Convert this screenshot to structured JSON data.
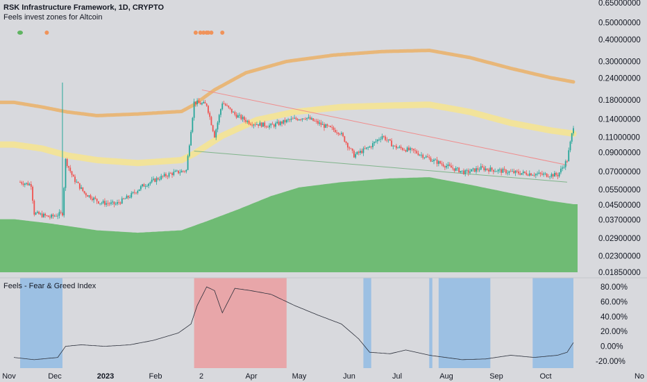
{
  "header": {
    "title": "RSK Infrastructure Framework, 1D, CRYPTO",
    "subtitle": "Feels invest zones for Altcoin"
  },
  "indicator": {
    "title": "Feels - Fear & Greed Index"
  },
  "colors": {
    "background": "#d8d9dd",
    "upper_band": "#e8b779",
    "mid_band": "#f2e39a",
    "lower_area": "#6fbb74",
    "candle_up": "#26a69a",
    "candle_down": "#ef5350",
    "greed_zone": "#e8a6a9",
    "fear_zone": "#9cc0e3",
    "dot_green": "#5fb461",
    "dot_orange": "#f0935a",
    "resistance_line": "#f08b8b",
    "support_line": "#7fb48a"
  },
  "chart_data": [
    {
      "type": "candlestick",
      "title": "RSK Infrastructure Framework, 1D, CRYPTO",
      "y_scale": "log",
      "y_ticks": [
        "0.65000000",
        "0.50000000",
        "0.40000000",
        "0.30000000",
        "0.24000000",
        "0.18000000",
        "0.14000000",
        "0.11000000",
        "0.09000000",
        "0.07000000",
        "0.05500000",
        "0.04500000",
        "0.03700000",
        "0.02900000",
        "0.02300000",
        "0.01850000"
      ],
      "x_ticks": [
        "Nov",
        "Dec",
        "2023",
        "Feb",
        "2",
        "Apr",
        "May",
        "Jun",
        "Jul",
        "Aug",
        "Sep",
        "Oct",
        "No"
      ],
      "price_path": [
        [
          "2022-11-01",
          0.06
        ],
        [
          "2022-11-08",
          0.058
        ],
        [
          "2022-11-10",
          0.04
        ],
        [
          "2022-11-20",
          0.038
        ],
        [
          "2022-11-28",
          0.04
        ],
        [
          "2022-11-30",
          0.08
        ],
        [
          "2022-12-05",
          0.063
        ],
        [
          "2022-12-12",
          0.052
        ],
        [
          "2022-12-22",
          0.046
        ],
        [
          "2023-01-01",
          0.045
        ],
        [
          "2023-01-10",
          0.05
        ],
        [
          "2023-01-18",
          0.057
        ],
        [
          "2023-01-28",
          0.063
        ],
        [
          "2023-02-05",
          0.067
        ],
        [
          "2023-02-15",
          0.07
        ],
        [
          "2023-02-20",
          0.17
        ],
        [
          "2023-02-28",
          0.165
        ],
        [
          "2023-03-05",
          0.11
        ],
        [
          "2023-03-10",
          0.17
        ],
        [
          "2023-03-18",
          0.145
        ],
        [
          "2023-03-28",
          0.13
        ],
        [
          "2023-04-10",
          0.125
        ],
        [
          "2023-04-22",
          0.135
        ],
        [
          "2023-05-02",
          0.14
        ],
        [
          "2023-05-14",
          0.125
        ],
        [
          "2023-05-24",
          0.115
        ],
        [
          "2023-06-02",
          0.085
        ],
        [
          "2023-06-12",
          0.095
        ],
        [
          "2023-06-20",
          0.11
        ],
        [
          "2023-06-28",
          0.095
        ],
        [
          "2023-07-10",
          0.09
        ],
        [
          "2023-07-22",
          0.08
        ],
        [
          "2023-08-02",
          0.073
        ],
        [
          "2023-08-12",
          0.068
        ],
        [
          "2023-08-22",
          0.072
        ],
        [
          "2023-09-01",
          0.07
        ],
        [
          "2023-09-12",
          0.068
        ],
        [
          "2023-09-24",
          0.067
        ],
        [
          "2023-10-03",
          0.066
        ],
        [
          "2023-10-10",
          0.066
        ],
        [
          "2023-10-16",
          0.08
        ],
        [
          "2023-10-20",
          0.125
        ]
      ],
      "upper_band": [
        [
          "2022-10-28",
          0.17
        ],
        [
          "2022-11-15",
          0.16
        ],
        [
          "2022-12-01",
          0.15
        ],
        [
          "2022-12-20",
          0.143
        ],
        [
          "2023-01-15",
          0.146
        ],
        [
          "2023-02-12",
          0.151
        ],
        [
          "2023-02-20",
          0.165
        ],
        [
          "2023-03-05",
          0.2
        ],
        [
          "2023-03-25",
          0.25
        ],
        [
          "2023-04-20",
          0.29
        ],
        [
          "2023-05-20",
          0.315
        ],
        [
          "2023-06-20",
          0.33
        ],
        [
          "2023-07-20",
          0.335
        ],
        [
          "2023-08-15",
          0.305
        ],
        [
          "2023-09-10",
          0.265
        ],
        [
          "2023-10-05",
          0.235
        ],
        [
          "2023-10-20",
          0.222
        ]
      ],
      "mid_band": [
        [
          "2022-10-28",
          0.098
        ],
        [
          "2022-11-15",
          0.093
        ],
        [
          "2022-12-01",
          0.085
        ],
        [
          "2022-12-20",
          0.08
        ],
        [
          "2023-01-15",
          0.077
        ],
        [
          "2023-02-12",
          0.08
        ],
        [
          "2023-02-20",
          0.087
        ],
        [
          "2023-03-10",
          0.11
        ],
        [
          "2023-04-01",
          0.135
        ],
        [
          "2023-04-25",
          0.15
        ],
        [
          "2023-05-25",
          0.16
        ],
        [
          "2023-06-25",
          0.163
        ],
        [
          "2023-07-20",
          0.165
        ],
        [
          "2023-08-15",
          0.15
        ],
        [
          "2023-09-10",
          0.13
        ],
        [
          "2023-10-05",
          0.118
        ],
        [
          "2023-10-20",
          0.113
        ]
      ],
      "lower_area": [
        [
          "2022-10-28",
          0.037
        ],
        [
          "2022-11-20",
          0.035
        ],
        [
          "2022-12-20",
          0.032
        ],
        [
          "2023-01-15",
          0.031
        ],
        [
          "2023-02-12",
          0.032
        ],
        [
          "2023-02-28",
          0.036
        ],
        [
          "2023-03-20",
          0.042
        ],
        [
          "2023-04-10",
          0.05
        ],
        [
          "2023-04-28",
          0.056
        ],
        [
          "2023-05-25",
          0.06
        ],
        [
          "2023-06-25",
          0.063
        ],
        [
          "2023-07-20",
          0.064
        ],
        [
          "2023-08-15",
          0.058
        ],
        [
          "2023-09-10",
          0.052
        ],
        [
          "2023-10-05",
          0.047
        ],
        [
          "2023-10-20",
          0.045
        ]
      ],
      "trend_lines": [
        {
          "kind": "resistance",
          "from": [
            "2023-02-25",
            0.2
          ],
          "to": [
            "2023-10-16",
            0.075
          ]
        },
        {
          "kind": "support",
          "from": [
            "2023-02-20",
            0.09
          ],
          "to": [
            "2023-10-16",
            0.06
          ]
        }
      ]
    },
    {
      "type": "line",
      "title": "Feels - Fear & Greed Index",
      "y_ticks": [
        "80.00%",
        "60.00%",
        "40.00%",
        "20.00%",
        "0.00%",
        "-20.00%"
      ],
      "ylim": [
        -30,
        88
      ],
      "values_path": [
        [
          "2022-10-28",
          -15
        ],
        [
          "2022-11-10",
          -18
        ],
        [
          "2022-11-25",
          -15
        ],
        [
          "2022-11-30",
          0
        ],
        [
          "2022-12-10",
          2
        ],
        [
          "2022-12-25",
          0
        ],
        [
          "2023-01-10",
          2
        ],
        [
          "2023-01-25",
          8
        ],
        [
          "2023-02-10",
          18
        ],
        [
          "2023-02-18",
          30
        ],
        [
          "2023-02-22",
          55
        ],
        [
          "2023-02-28",
          80
        ],
        [
          "2023-03-05",
          75
        ],
        [
          "2023-03-10",
          45
        ],
        [
          "2023-03-18",
          78
        ],
        [
          "2023-03-28",
          75
        ],
        [
          "2023-04-10",
          70
        ],
        [
          "2023-04-25",
          55
        ],
        [
          "2023-05-10",
          42
        ],
        [
          "2023-05-25",
          30
        ],
        [
          "2023-06-05",
          10
        ],
        [
          "2023-06-12",
          -8
        ],
        [
          "2023-06-25",
          -10
        ],
        [
          "2023-07-05",
          -5
        ],
        [
          "2023-07-20",
          -12
        ],
        [
          "2023-08-10",
          -18
        ],
        [
          "2023-08-25",
          -17
        ],
        [
          "2023-09-10",
          -12
        ],
        [
          "2023-09-25",
          -15
        ],
        [
          "2023-10-10",
          -12
        ],
        [
          "2023-10-16",
          -8
        ],
        [
          "2023-10-20",
          5
        ]
      ],
      "greed_zones": [
        [
          "2023-02-20",
          "2023-04-20"
        ]
      ],
      "fear_zones": [
        [
          "2022-11-01",
          "2022-11-28"
        ],
        [
          "2023-06-08",
          "2023-06-13"
        ],
        [
          "2023-07-20",
          "2023-07-22"
        ],
        [
          "2023-07-26",
          "2023-08-28"
        ],
        [
          "2023-09-24",
          "2023-10-20"
        ]
      ]
    }
  ],
  "signal_dots": {
    "green": [
      "2022-11-01"
    ],
    "orange": [
      "2022-11-18",
      "2023-02-21",
      "2023-02-24",
      "2023-02-26",
      "2023-02-28",
      "2023-03-01",
      "2023-03-03",
      "2023-03-10"
    ]
  }
}
